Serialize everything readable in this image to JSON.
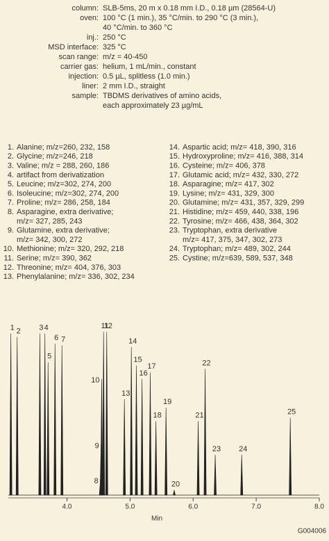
{
  "conditions": [
    {
      "label": "column:",
      "lines": [
        "SLB-5ms, 20 m x 0.18 mm I.D., 0.18 µm (28564-U)"
      ]
    },
    {
      "label": "oven:",
      "lines": [
        "100 °C (1 min.), 35 °C/min. to 290 °C (3 min.),",
        "40 °C/min. to 360 °C"
      ]
    },
    {
      "label": "inj.:",
      "lines": [
        "250 °C"
      ]
    },
    {
      "label": "MSD interface:",
      "lines": [
        "325 °C"
      ]
    },
    {
      "label": "scan range:",
      "lines": [
        "m/z = 40-450"
      ]
    },
    {
      "label": "carrier gas:",
      "lines": [
        "helium, 1 mL/min., constant"
      ]
    },
    {
      "label": "injection:",
      "lines": [
        "0.5 µL, splitless (1.0 min.)"
      ]
    },
    {
      "label": "liner:",
      "lines": [
        "2 mm I.D., straight"
      ]
    },
    {
      "label": "sample:",
      "lines": [
        "TBDMS derivatives of amino acids,",
        "each approximately 23 µg/mL"
      ]
    }
  ],
  "compounds": [
    {
      "number": "1.",
      "lines": [
        "Alanine; m/z=260, 232, 158"
      ]
    },
    {
      "number": "2.",
      "lines": [
        "Glycine; m/z=246, 218"
      ]
    },
    {
      "number": "3.",
      "lines": [
        "Valine; m/z = 288, 260, 186"
      ]
    },
    {
      "number": "4.",
      "lines": [
        "artifact from derivatization"
      ]
    },
    {
      "number": "5.",
      "lines": [
        "Leucine; m/z=302, 274, 200"
      ]
    },
    {
      "number": "6.",
      "lines": [
        "Isoleucine; m/z=302, 274, 200"
      ]
    },
    {
      "number": "7.",
      "lines": [
        "Proline; m/z= 286, 258, 184"
      ]
    },
    {
      "number": "8.",
      "lines": [
        "Asparagine, extra derivative;",
        "m/z= 327, 285, 243"
      ]
    },
    {
      "number": "9.",
      "lines": [
        "Glutamine, extra derivative;",
        "m/z= 342, 300, 272"
      ]
    },
    {
      "number": "10.",
      "lines": [
        "Methionine; m/z= 320, 292, 218"
      ]
    },
    {
      "number": "11.",
      "lines": [
        "Serine; m/z= 390, 362"
      ]
    },
    {
      "number": "12.",
      "lines": [
        "Threonine; m/z= 404, 376, 303"
      ]
    },
    {
      "number": "13.",
      "lines": [
        "Phenylalanine; m/z= 336, 302, 234"
      ]
    },
    {
      "number": "14.",
      "lines": [
        "Aspartic acid; m/z= 418, 390, 316"
      ]
    },
    {
      "number": "15.",
      "lines": [
        "Hydroxyproline; m/z= 416, 388, 314"
      ]
    },
    {
      "number": "16.",
      "lines": [
        "Cysteine; m/z= 406, 378"
      ]
    },
    {
      "number": "17.",
      "lines": [
        "Glutamic acid; m/z= 432, 330, 272"
      ]
    },
    {
      "number": "18.",
      "lines": [
        "Asparagine; m/z= 417, 302"
      ]
    },
    {
      "number": "19.",
      "lines": [
        "Lysine; m/z= 431, 329, 300"
      ]
    },
    {
      "number": "20.",
      "lines": [
        "Glutamine; m/z= 431, 357, 329, 299"
      ]
    },
    {
      "number": "21.",
      "lines": [
        "Histidine; m/z= 459, 440, 338, 196"
      ]
    },
    {
      "number": "22.",
      "lines": [
        "Tyrosine; m/z= 466, 438, 364, 302"
      ]
    },
    {
      "number": "23.",
      "lines": [
        "Tryptophan, extra derivative",
        "m/z= 417, 375, 347, 302, 273"
      ]
    },
    {
      "number": "24.",
      "lines": [
        "Tryptophan; m/z= 489, 302, 244"
      ]
    },
    {
      "number": "25.",
      "lines": [
        "Cystine; m/z=639, 589, 537, 348"
      ]
    }
  ],
  "chart_data": {
    "type": "chromatogram",
    "xlabel": "Min",
    "x": [
      3.11,
      3.21,
      3.57,
      3.65,
      3.7,
      3.81,
      3.92,
      4.53,
      4.54,
      4.55,
      4.58,
      4.63,
      4.91,
      5.02,
      5.1,
      5.19,
      5.32,
      5.41,
      5.57,
      5.7,
      6.08,
      6.19,
      6.35,
      6.77,
      7.54
    ],
    "values": [
      96,
      94,
      96,
      96,
      79,
      90,
      89,
      9,
      30,
      69,
      97,
      97,
      57,
      88,
      77,
      69,
      73,
      44,
      52,
      3,
      44,
      75,
      24,
      24,
      46
    ],
    "peak_labels": [
      "1",
      "2",
      "3",
      "4",
      "5",
      "6",
      "7",
      "8",
      "9",
      "10",
      "11",
      "12",
      "13",
      "14",
      "15",
      "16",
      "17",
      "18",
      "19",
      "20",
      "21",
      "22",
      "23",
      "24",
      "25"
    ],
    "color": "#222222",
    "xlim": [
      3.07,
      8.0
    ],
    "xticks": [
      {
        "value": 4,
        "label": "4.0"
      },
      {
        "value": 5,
        "label": "5.0"
      },
      {
        "value": 6,
        "label": "6.0"
      },
      {
        "value": 7,
        "label": "7.0"
      },
      {
        "value": 8,
        "label": "8.0"
      }
    ],
    "ylim": [
      0,
      100
    ]
  },
  "code": "G004006"
}
